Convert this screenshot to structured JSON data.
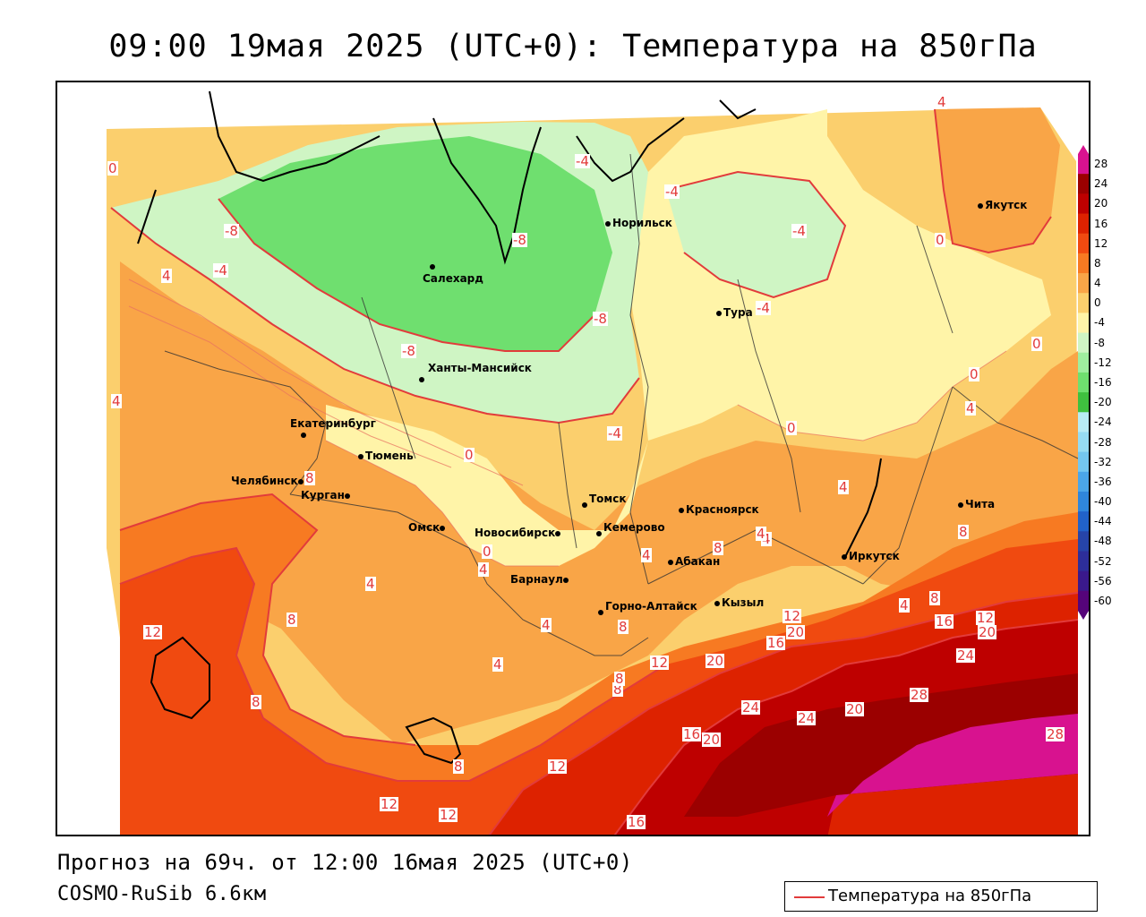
{
  "title": "09:00 19мая 2025 (UTC+0): Температура на 850гПа",
  "footer": {
    "forecast": "Прогноз на 69ч. от 12:00 16мая 2025 (UTC+0)",
    "model": "COSMO-RuSib 6.6км"
  },
  "legend": {
    "label": "Температура на 850гПа",
    "line_color": "#e23b3b"
  },
  "colorbar": {
    "ticks": [
      "28",
      "24",
      "20",
      "16",
      "12",
      "8",
      "4",
      "0",
      "-4",
      "-8",
      "-12",
      "-16",
      "-20",
      "-24",
      "-28",
      "-32",
      "-36",
      "-40",
      "-44",
      "-48",
      "-52",
      "-56",
      "-60"
    ],
    "colors": [
      "#d8128f",
      "#9b0000",
      "#be0000",
      "#dd2200",
      "#f04a10",
      "#f77a22",
      "#f9a547",
      "#fbcf6d",
      "#fff4a8",
      "#cff5c4",
      "#9fee9f",
      "#6fdf6f",
      "#3fc03f",
      "#b8ecf4",
      "#96dcf2",
      "#74c7ef",
      "#4ba6e8",
      "#2f86dc",
      "#2162c9",
      "#2644a8",
      "#2d2e9a",
      "#3a198c",
      "#55047a"
    ]
  },
  "cities": [
    {
      "name": "Норильск"
    },
    {
      "name": "Якутск"
    },
    {
      "name": "Салехард"
    },
    {
      "name": "Тура"
    },
    {
      "name": "Ханты-Мансийск"
    },
    {
      "name": "Екатеринбург"
    },
    {
      "name": "Тюмень"
    },
    {
      "name": "Челябинск"
    },
    {
      "name": "Курган"
    },
    {
      "name": "Омск"
    },
    {
      "name": "Новосибирск"
    },
    {
      "name": "Томск"
    },
    {
      "name": "Кемерово"
    },
    {
      "name": "Красноярск"
    },
    {
      "name": "Барнаул"
    },
    {
      "name": "Абакан"
    },
    {
      "name": "Горно-Алтайск"
    },
    {
      "name": "Кызыл"
    },
    {
      "name": "Иркутск"
    },
    {
      "name": "Чита"
    }
  ],
  "contour_labels": [
    "0",
    "-4",
    "-4",
    "-4",
    "4",
    "-8",
    "-8",
    "-4",
    "4",
    "0",
    "-4",
    "-8",
    "-8",
    "4",
    "0",
    "0",
    "4",
    "0",
    "-4",
    "4",
    "4",
    "4",
    "8",
    "8",
    "4",
    "4",
    "4",
    "8",
    "8",
    "8",
    "12",
    "8",
    "12",
    "16",
    "20",
    "12",
    "16",
    "20",
    "12",
    "20",
    "24",
    "20",
    "24",
    "24",
    "28",
    "16",
    "20",
    "28",
    "8",
    "12",
    "12",
    "12",
    "16",
    "4",
    "4",
    "8",
    "8",
    "0",
    "0",
    "4",
    "8"
  ]
}
